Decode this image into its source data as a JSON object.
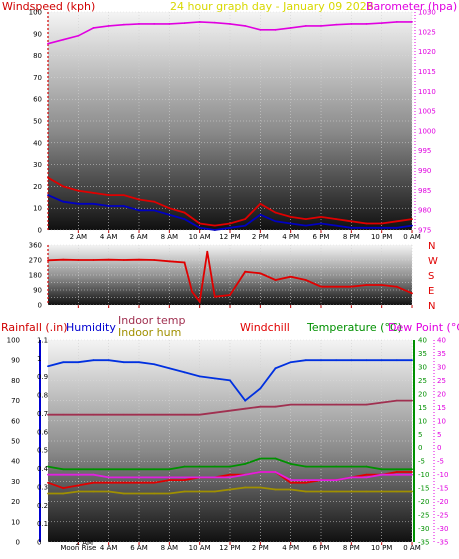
{
  "header": {
    "left": "Windspeed (kph)",
    "center": "24 hour graph day - January 09 2026",
    "right": "Barometer (hpa)"
  },
  "colors": {
    "wind_gust": "#e00000",
    "wind_avg": "#0000c0",
    "barometer": "#e000e0",
    "direction": "#e00000",
    "humidity": "#0030e0",
    "indoor_temp": "#a03050",
    "indoor_hum": "#a09000",
    "windchill": "#e00000",
    "temperature": "#009000",
    "dewpoint": "#e020e0",
    "rain_axis": "#d00000",
    "hum_axis": "#0000d0",
    "temp_axis": "#009000",
    "dew_axis": "#e000e0",
    "title": "#d8d800"
  },
  "time_labels": [
    "2 AM",
    "4 AM",
    "6 AM",
    "8 AM",
    "10 AM",
    "12 PM",
    "2 PM",
    "4 PM",
    "6 PM",
    "8 PM",
    "10 PM",
    "0 AM"
  ],
  "time_labels_bottom": [
    "Moon Rise",
    "4 AM",
    "6 AM",
    "8 AM",
    "10 AM",
    "12 PM",
    "2 PM",
    "4 PM",
    "6 PM",
    "8 PM",
    "10 PM",
    "0 AM"
  ],
  "bottom_marker_label": "2 AM",
  "bottom_headers": {
    "rainfall": "Rainfall (.in)",
    "humidity": "Humidity",
    "indoor_temp": "Indoor temp",
    "indoor_hum": "Indoor hum",
    "windchill": "Windchill",
    "temperature": "Temperature (°C)",
    "dewpoint": "Dew Point (°C)"
  },
  "direction_letters": [
    "N",
    "W",
    "S",
    "E",
    "N"
  ],
  "chart_data": [
    {
      "type": "line",
      "title": "24 hour graph day - January 09 2026",
      "x_hours": [
        0,
        1,
        2,
        3,
        4,
        5,
        6,
        7,
        8,
        9,
        10,
        11,
        12,
        13,
        14,
        15,
        16,
        17,
        18,
        19,
        20,
        21,
        22,
        23,
        24
      ],
      "left_axis": {
        "label": "Windspeed (kph)",
        "ylim": [
          0,
          100
        ],
        "ticks": [
          0,
          10,
          20,
          30,
          40,
          50,
          60,
          70,
          80,
          90,
          100
        ]
      },
      "right_axis": {
        "label": "Barometer (hpa)",
        "ylim": [
          975,
          1030
        ],
        "ticks": [
          975,
          980,
          985,
          990,
          995,
          1000,
          1005,
          1010,
          1015,
          1020,
          1025,
          1030
        ]
      },
      "series": [
        {
          "name": "Barometer (hpa)",
          "axis": "right",
          "values": [
            1022,
            1023,
            1024,
            1026,
            1026.5,
            1026.8,
            1027,
            1027,
            1027,
            1027.2,
            1027.5,
            1027.3,
            1027,
            1026.5,
            1025.5,
            1025.5,
            1026,
            1026.5,
            1026.5,
            1026.8,
            1027,
            1027,
            1027.2,
            1027.5,
            1027.5
          ]
        },
        {
          "name": "Windspeed (kph)",
          "axis": "left",
          "values": [
            24,
            20,
            18,
            17,
            16,
            16,
            14,
            13,
            10,
            8,
            3,
            2,
            3,
            5,
            12,
            8,
            6,
            5,
            6,
            5,
            4,
            3,
            3,
            4,
            5
          ]
        },
        {
          "axis": "left",
          "values": [
            16,
            13,
            12,
            12,
            11,
            11,
            9,
            9,
            7,
            5,
            1,
            0,
            1,
            2,
            7,
            4,
            3,
            2,
            3,
            2,
            1,
            1,
            1,
            1,
            2
          ]
        }
      ]
    },
    {
      "type": "line",
      "x_hours": [
        0,
        1,
        2,
        3,
        4,
        5,
        6,
        7,
        8,
        9,
        9.5,
        10,
        10.5,
        11,
        12,
        13,
        14,
        15,
        16,
        17,
        18,
        19,
        20,
        21,
        22,
        23,
        24
      ],
      "ylim": [
        0,
        360
      ],
      "ticks": [
        0,
        45,
        90,
        135,
        180,
        225,
        270,
        315,
        360
      ],
      "tick_labels": [
        "0",
        "90",
        "180",
        "270",
        "360"
      ],
      "series": [
        {
          "name": "Wind direction",
          "values": [
            268,
            272,
            270,
            270,
            272,
            270,
            272,
            270,
            262,
            255,
            80,
            20,
            320,
            50,
            60,
            200,
            190,
            150,
            170,
            150,
            110,
            110,
            110,
            120,
            120,
            110,
            70
          ]
        }
      ]
    },
    {
      "type": "line",
      "x_hours": [
        0,
        1,
        2,
        3,
        4,
        5,
        6,
        7,
        8,
        9,
        10,
        11,
        12,
        13,
        14,
        15,
        16,
        17,
        18,
        19,
        20,
        21,
        22,
        23,
        24
      ],
      "axes": {
        "rainfall": {
          "label": "Rainfall (.in)",
          "ylim": [
            0,
            1.1
          ],
          "ticks": [
            0,
            0.1,
            0.2,
            0.3,
            0.4,
            0.5,
            0.6,
            0.7,
            0.8,
            0.9,
            1,
            1.1
          ]
        },
        "humidity": {
          "label": "Humidity",
          "ylim": [
            0,
            100
          ],
          "ticks": [
            0,
            10,
            20,
            30,
            40,
            50,
            60,
            70,
            80,
            90,
            100
          ]
        },
        "temperature": {
          "label": "Temperature (°C)",
          "ylim": [
            -35,
            40
          ],
          "ticks": [
            -35,
            -30,
            -25,
            -20,
            -15,
            -10,
            -5,
            0,
            5,
            10,
            15,
            20,
            25,
            30,
            35,
            40
          ]
        },
        "dewpoint": {
          "label": "Dew Point (°C)",
          "ylim": [
            -35,
            40
          ],
          "ticks": [
            -35,
            -30,
            -25,
            -20,
            -15,
            -10,
            -5,
            0,
            5,
            10,
            15,
            20,
            25,
            30,
            35,
            40
          ]
        }
      },
      "series": [
        {
          "name": "Humidity",
          "axis": "humidity",
          "values": [
            87,
            89,
            89,
            90,
            90,
            89,
            89,
            88,
            86,
            84,
            82,
            81,
            80,
            70,
            76,
            86,
            89,
            90,
            90,
            90,
            90,
            90,
            90,
            90,
            90
          ]
        },
        {
          "name": "Indoor temp",
          "axis": "humidity",
          "values": [
            63,
            63,
            63,
            63,
            63,
            63,
            63,
            63,
            63,
            63,
            63,
            64,
            65,
            66,
            67,
            67,
            68,
            68,
            68,
            68,
            68,
            68,
            69,
            70,
            70
          ]
        },
        {
          "name": "Indoor hum",
          "axis": "humidity",
          "values": [
            24,
            24,
            25,
            25,
            25,
            24,
            24,
            24,
            24,
            25,
            25,
            25,
            26,
            27,
            27,
            26,
            26,
            25,
            25,
            25,
            25,
            25,
            25,
            25,
            25
          ]
        },
        {
          "name": "Windchill",
          "axis": "temperature",
          "values": [
            -13,
            -15,
            -14,
            -13,
            -13,
            -13,
            -13,
            -13,
            -12,
            -12,
            -11,
            -11,
            -10,
            -10,
            -9,
            -9,
            -13,
            -13,
            -12,
            -12,
            -11,
            -10,
            -10,
            -9,
            -9
          ]
        },
        {
          "name": "Temperature (°C)",
          "axis": "temperature",
          "values": [
            -7,
            -8,
            -8,
            -8,
            -8,
            -8,
            -8,
            -8,
            -8,
            -7,
            -7,
            -7,
            -7,
            -6,
            -4,
            -4,
            -6,
            -7,
            -7,
            -7,
            -7,
            -7,
            -8,
            -8,
            -8
          ]
        },
        {
          "name": "Dew Point (°C)",
          "axis": "dewpoint",
          "values": [
            -10,
            -10,
            -10,
            -10,
            -11,
            -11,
            -11,
            -11,
            -11,
            -11,
            -11,
            -11,
            -11,
            -10,
            -9,
            -9,
            -12,
            -12,
            -12,
            -12,
            -11,
            -11,
            -10,
            -10,
            -10
          ]
        }
      ]
    }
  ]
}
